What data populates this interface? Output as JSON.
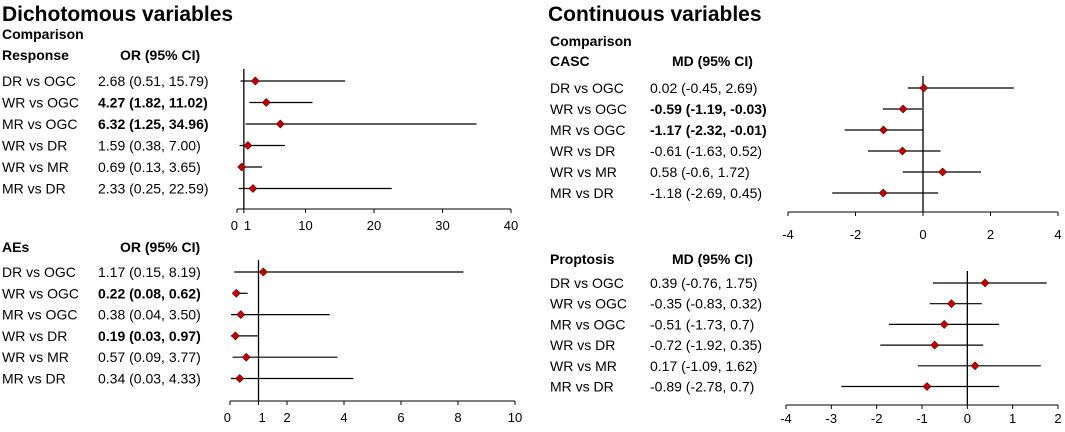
{
  "titles": {
    "dichotomous": "Dichotomous variables",
    "continuous": "Continuous variables"
  },
  "colors": {
    "marker": "#c00000",
    "marker_stroke": "#5a0000",
    "line": "#000000",
    "text": "#000000"
  },
  "chart_data": [
    {
      "type": "forest",
      "section": "Dichotomous variables",
      "group_label": "Comparison",
      "outcome_label": "Response",
      "estimate_label": "OR (95% CI)",
      "xlim": [
        0,
        40
      ],
      "xticks": [
        "0",
        "1",
        "10",
        "20",
        "30",
        "40"
      ],
      "xtick_values": [
        0,
        1,
        10,
        20,
        30,
        40
      ],
      "null_value": 1,
      "rows": [
        {
          "label": "DR vs OGC",
          "ci_text": "2.68 (0.51, 15.79)",
          "est": 2.68,
          "lo": 0.51,
          "hi": 15.79,
          "bold": false
        },
        {
          "label": "WR vs OGC",
          "ci_text": "4.27 (1.82, 11.02)",
          "est": 4.27,
          "lo": 1.82,
          "hi": 11.02,
          "bold": true
        },
        {
          "label": "MR vs OGC",
          "ci_text": "6.32 (1.25, 34.96)",
          "est": 6.32,
          "lo": 1.25,
          "hi": 34.96,
          "bold": true
        },
        {
          "label": "WR vs DR",
          "ci_text": "1.59 (0.38, 7.00)",
          "est": 1.59,
          "lo": 0.38,
          "hi": 7.0,
          "bold": false
        },
        {
          "label": "WR vs MR",
          "ci_text": "0.69 (0.13, 3.65)",
          "est": 0.69,
          "lo": 0.13,
          "hi": 3.65,
          "bold": false
        },
        {
          "label": "MR  vs DR",
          "ci_text": "2.33 (0.25, 22.59)",
          "est": 2.33,
          "lo": 0.25,
          "hi": 22.59,
          "bold": false
        }
      ]
    },
    {
      "type": "forest",
      "section": "Dichotomous variables",
      "group_label": "",
      "outcome_label": "AEs",
      "estimate_label": "OR (95% CI)",
      "xlim": [
        0,
        10
      ],
      "xticks": [
        "0",
        "1",
        "2",
        "4",
        "6",
        "8",
        "10"
      ],
      "xtick_values": [
        0,
        1,
        2,
        4,
        6,
        8,
        10
      ],
      "null_value": 1,
      "rows": [
        {
          "label": "DR vs OGC",
          "ci_text": "1.17 (0.15, 8.19)",
          "est": 1.17,
          "lo": 0.15,
          "hi": 8.19,
          "bold": false
        },
        {
          "label": "WR vs OGC",
          "ci_text": "0.22 (0.08, 0.62)",
          "est": 0.22,
          "lo": 0.08,
          "hi": 0.62,
          "bold": true
        },
        {
          "label": "MR vs OGC",
          "ci_text": "0.38 (0.04, 3.50)",
          "est": 0.38,
          "lo": 0.04,
          "hi": 3.5,
          "bold": false
        },
        {
          "label": "WR vs DR",
          "ci_text": "0.19 (0.03, 0.97)",
          "est": 0.19,
          "lo": 0.03,
          "hi": 0.97,
          "bold": true
        },
        {
          "label": "WR vs MR",
          "ci_text": "0.57 (0.09, 3.77)",
          "est": 0.57,
          "lo": 0.09,
          "hi": 3.77,
          "bold": false
        },
        {
          "label": "MR  vs DR",
          "ci_text": "0.34 (0.03, 4.33)",
          "est": 0.34,
          "lo": 0.03,
          "hi": 4.33,
          "bold": false
        }
      ]
    },
    {
      "type": "forest",
      "section": "Continuous variables",
      "group_label": "Comparison",
      "outcome_label": "CASC",
      "estimate_label": "MD (95% CI)",
      "xlim": [
        -4,
        4
      ],
      "xticks": [
        "-4",
        "-2",
        "0",
        "2",
        "4"
      ],
      "xtick_values": [
        -4,
        -2,
        0,
        2,
        4
      ],
      "null_value": 0,
      "rows": [
        {
          "label": "DR vs OGC",
          "ci_text": "0.02 (-0.45, 2.69)",
          "est": 0.02,
          "lo": -0.45,
          "hi": 2.69,
          "bold": false
        },
        {
          "label": "WR vs OGC",
          "ci_text": "-0.59 (-1.19, -0.03)",
          "est": -0.59,
          "lo": -1.19,
          "hi": -0.03,
          "bold": true
        },
        {
          "label": "MR vs OGC",
          "ci_text": "-1.17 (-2.32, -0.01)",
          "est": -1.17,
          "lo": -2.32,
          "hi": -0.01,
          "bold": true
        },
        {
          "label": "WR vs DR",
          "ci_text": "-0.61 (-1.63, 0.52)",
          "est": -0.61,
          "lo": -1.63,
          "hi": 0.52,
          "bold": false
        },
        {
          "label": "WR vs MR",
          "ci_text": "0.58 (-0.6, 1.72)",
          "est": 0.58,
          "lo": -0.6,
          "hi": 1.72,
          "bold": false
        },
        {
          "label": "MR  vs DR",
          "ci_text": "-1.18 (-2.69, 0.45)",
          "est": -1.18,
          "lo": -2.69,
          "hi": 0.45,
          "bold": false
        }
      ]
    },
    {
      "type": "forest",
      "section": "Continuous variables",
      "group_label": "",
      "outcome_label": "Proptosis",
      "estimate_label": "MD (95% CI)",
      "xlim": [
        -4,
        2
      ],
      "xticks": [
        "-4",
        "-3",
        "-2",
        "-1",
        "0",
        "1",
        "2"
      ],
      "xtick_values": [
        -4,
        -3,
        -2,
        -1,
        0,
        1,
        2
      ],
      "null_value": 0,
      "rows": [
        {
          "label": "DR vs OGC",
          "ci_text": "0.39 (-0.76, 1.75)",
          "est": 0.39,
          "lo": -0.76,
          "hi": 1.75,
          "bold": false
        },
        {
          "label": "WR vs OGC",
          "ci_text": "-0.35 (-0.83, 0.32)",
          "est": -0.35,
          "lo": -0.83,
          "hi": 0.32,
          "bold": false
        },
        {
          "label": "MR vs OGC",
          "ci_text": "-0.51 (-1.73, 0.7)",
          "est": -0.51,
          "lo": -1.73,
          "hi": 0.7,
          "bold": false
        },
        {
          "label": "WR vs DR",
          "ci_text": "-0.72 (-1.92, 0.35)",
          "est": -0.72,
          "lo": -1.92,
          "hi": 0.35,
          "bold": false
        },
        {
          "label": "WR vs MR",
          "ci_text": "0.17 (-1.09, 1.62)",
          "est": 0.17,
          "lo": -1.09,
          "hi": 1.62,
          "bold": false
        },
        {
          "label": "MR  vs DR",
          "ci_text": "-0.89 (-2.78, 0.7)",
          "est": -0.89,
          "lo": -2.78,
          "hi": 0.7,
          "bold": false
        }
      ]
    }
  ]
}
